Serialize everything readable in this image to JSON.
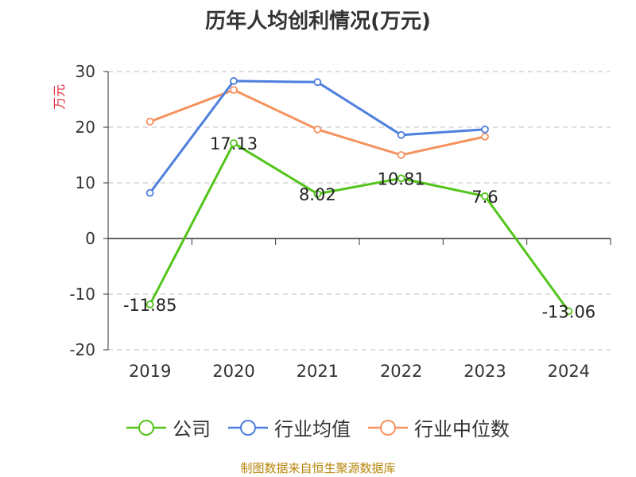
{
  "title": "历年人均创利情况(万元)",
  "source": "制图数据来自恒生聚源数据库",
  "chart_data": {
    "type": "line",
    "title": "历年人均创利情况(万元)",
    "ylabel": "万元",
    "xlabel": "",
    "categories": [
      "2019",
      "2020",
      "2021",
      "2022",
      "2023",
      "2024"
    ],
    "ylim": [
      -20,
      30
    ],
    "yticks": [
      30,
      20,
      10,
      0,
      -10,
      -20
    ],
    "grid": true,
    "legend_position": "bottom",
    "series": [
      {
        "name": "公司",
        "color": "#52c41a",
        "values": [
          -11.85,
          17.13,
          8.02,
          10.81,
          7.6,
          -13.06
        ],
        "labels": [
          "-11.85",
          "17.13",
          "8.02",
          "10.81",
          "7.6",
          "-13.06"
        ]
      },
      {
        "name": "行业均值",
        "color": "#4e7fdd",
        "values": [
          8.2,
          28.3,
          28.1,
          18.6,
          19.6,
          null
        ]
      },
      {
        "name": "行业中位数",
        "color": "#f5925e",
        "values": [
          21.0,
          26.7,
          19.6,
          15.0,
          18.3,
          null
        ]
      }
    ]
  }
}
